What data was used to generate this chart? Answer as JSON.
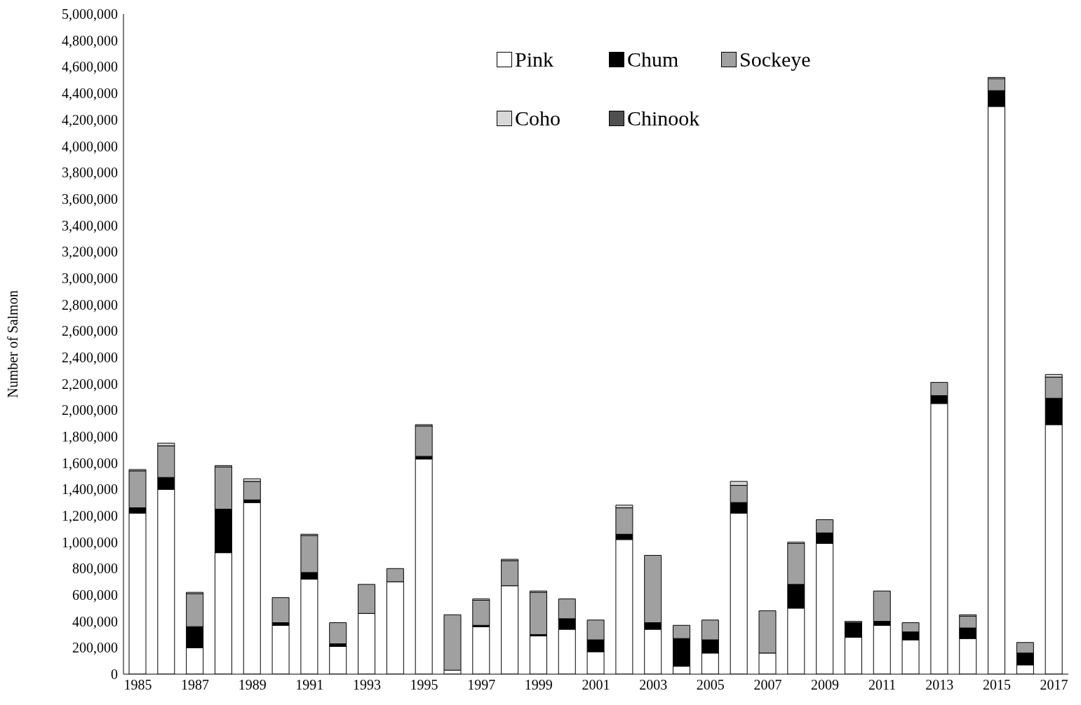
{
  "chart_data": {
    "type": "bar",
    "ylabel": "Number of Salmon",
    "stacked": true,
    "categories": [
      "1985",
      null,
      "1987",
      null,
      "1989",
      null,
      "1991",
      null,
      "1993",
      null,
      "1995",
      null,
      "1997",
      null,
      "1999",
      null,
      "2001",
      null,
      "2003",
      null,
      "2005",
      null,
      "2007",
      null,
      "2009",
      null,
      "2011",
      null,
      "2013",
      null,
      "2015",
      null,
      "2017"
    ],
    "series": [
      {
        "name": "Pink",
        "color": "#ffffff",
        "values": [
          1220000,
          1400000,
          200000,
          920000,
          1300000,
          370000,
          720000,
          210000,
          460000,
          700000,
          1630000,
          30000,
          360000,
          670000,
          290000,
          340000,
          170000,
          1020000,
          340000,
          60000,
          160000,
          1220000,
          160000,
          500000,
          990000,
          280000,
          370000,
          260000,
          2050000,
          270000,
          4300000,
          70000,
          1890000
        ]
      },
      {
        "name": "Chum",
        "color": "#000000",
        "values": [
          40000,
          90000,
          160000,
          330000,
          20000,
          20000,
          50000,
          20000,
          0,
          0,
          20000,
          0,
          10000,
          null,
          10000,
          80000,
          90000,
          40000,
          50000,
          210000,
          100000,
          80000,
          0,
          180000,
          80000,
          110000,
          30000,
          60000,
          60000,
          80000,
          120000,
          90000,
          200000
        ]
      },
      {
        "name": "Sockeye",
        "color": "#a0a0a0",
        "values": [
          280000,
          240000,
          250000,
          320000,
          140000,
          190000,
          280000,
          160000,
          220000,
          100000,
          230000,
          420000,
          190000,
          190000,
          320000,
          150000,
          150000,
          200000,
          510000,
          100000,
          150000,
          130000,
          320000,
          310000,
          100000,
          10000,
          230000,
          70000,
          100000,
          90000,
          90000,
          80000,
          160000
        ]
      },
      {
        "name": "Coho",
        "color": "#d8d8d8",
        "values": [
          10000,
          20000,
          10000,
          10000,
          20000,
          0,
          10000,
          0,
          0,
          0,
          10000,
          0,
          10000,
          10000,
          10000,
          0,
          0,
          20000,
          0,
          0,
          0,
          30000,
          0,
          10000,
          0,
          0,
          0,
          0,
          0,
          10000,
          10000,
          0,
          20000
        ]
      },
      {
        "name": "Chinook",
        "color": "#505050",
        "values": [
          0,
          0,
          0,
          0,
          0,
          0,
          0,
          0,
          0,
          0,
          0,
          0,
          0,
          0,
          0,
          0,
          0,
          0,
          0,
          0,
          0,
          0,
          0,
          0,
          0,
          0,
          0,
          0,
          0,
          0,
          0,
          0,
          0
        ]
      }
    ],
    "ylim": [
      0,
      5000000
    ],
    "yticks": [
      0,
      {
        "value": 200000,
        "label": "200,000"
      },
      {
        "value": 400000,
        "label": "400,000"
      },
      {
        "value": 600000,
        "label": "600,000"
      },
      {
        "value": 800000,
        "label": "800,000"
      },
      {
        "value": 1000000,
        "label": "1,000,000"
      },
      {
        "value": 1200000,
        "label": "1,200,000"
      },
      {
        "value": 1400000,
        "label": "1,400,000"
      },
      {
        "value": 1600000,
        "label": "1,600,000"
      },
      {
        "value": 1800000,
        "label": "1,800,000"
      },
      {
        "value": 2000000,
        "label": "2,000,000"
      },
      {
        "value": 2200000,
        "label": "2,200,000"
      },
      {
        "value": 2400000,
        "label": "2,400,000"
      },
      {
        "value": 2600000,
        "label": "2,600,000"
      },
      {
        "value": 2800000,
        "label": "2,800,000"
      },
      {
        "value": 3000000,
        "label": "3,000,000"
      },
      {
        "value": 3200000,
        "label": "3,200,000"
      },
      {
        "value": 3400000,
        "label": "3,400,000"
      },
      {
        "value": 3600000,
        "label": "3,600,000"
      },
      {
        "value": 3800000,
        "label": "3,800,000"
      },
      {
        "value": 4000000,
        "label": "4,000,000"
      },
      {
        "value": 4200000,
        "label": "4,200,000"
      },
      {
        "value": 4400000,
        "label": "4,400,000"
      },
      {
        "value": 4600000,
        "label": "4,600,000"
      },
      {
        "value": 4800000,
        "label": "4,800,000"
      },
      {
        "value": 5000000,
        "label": "5,000,000"
      }
    ],
    "legend": "top right",
    "grid": false
  }
}
